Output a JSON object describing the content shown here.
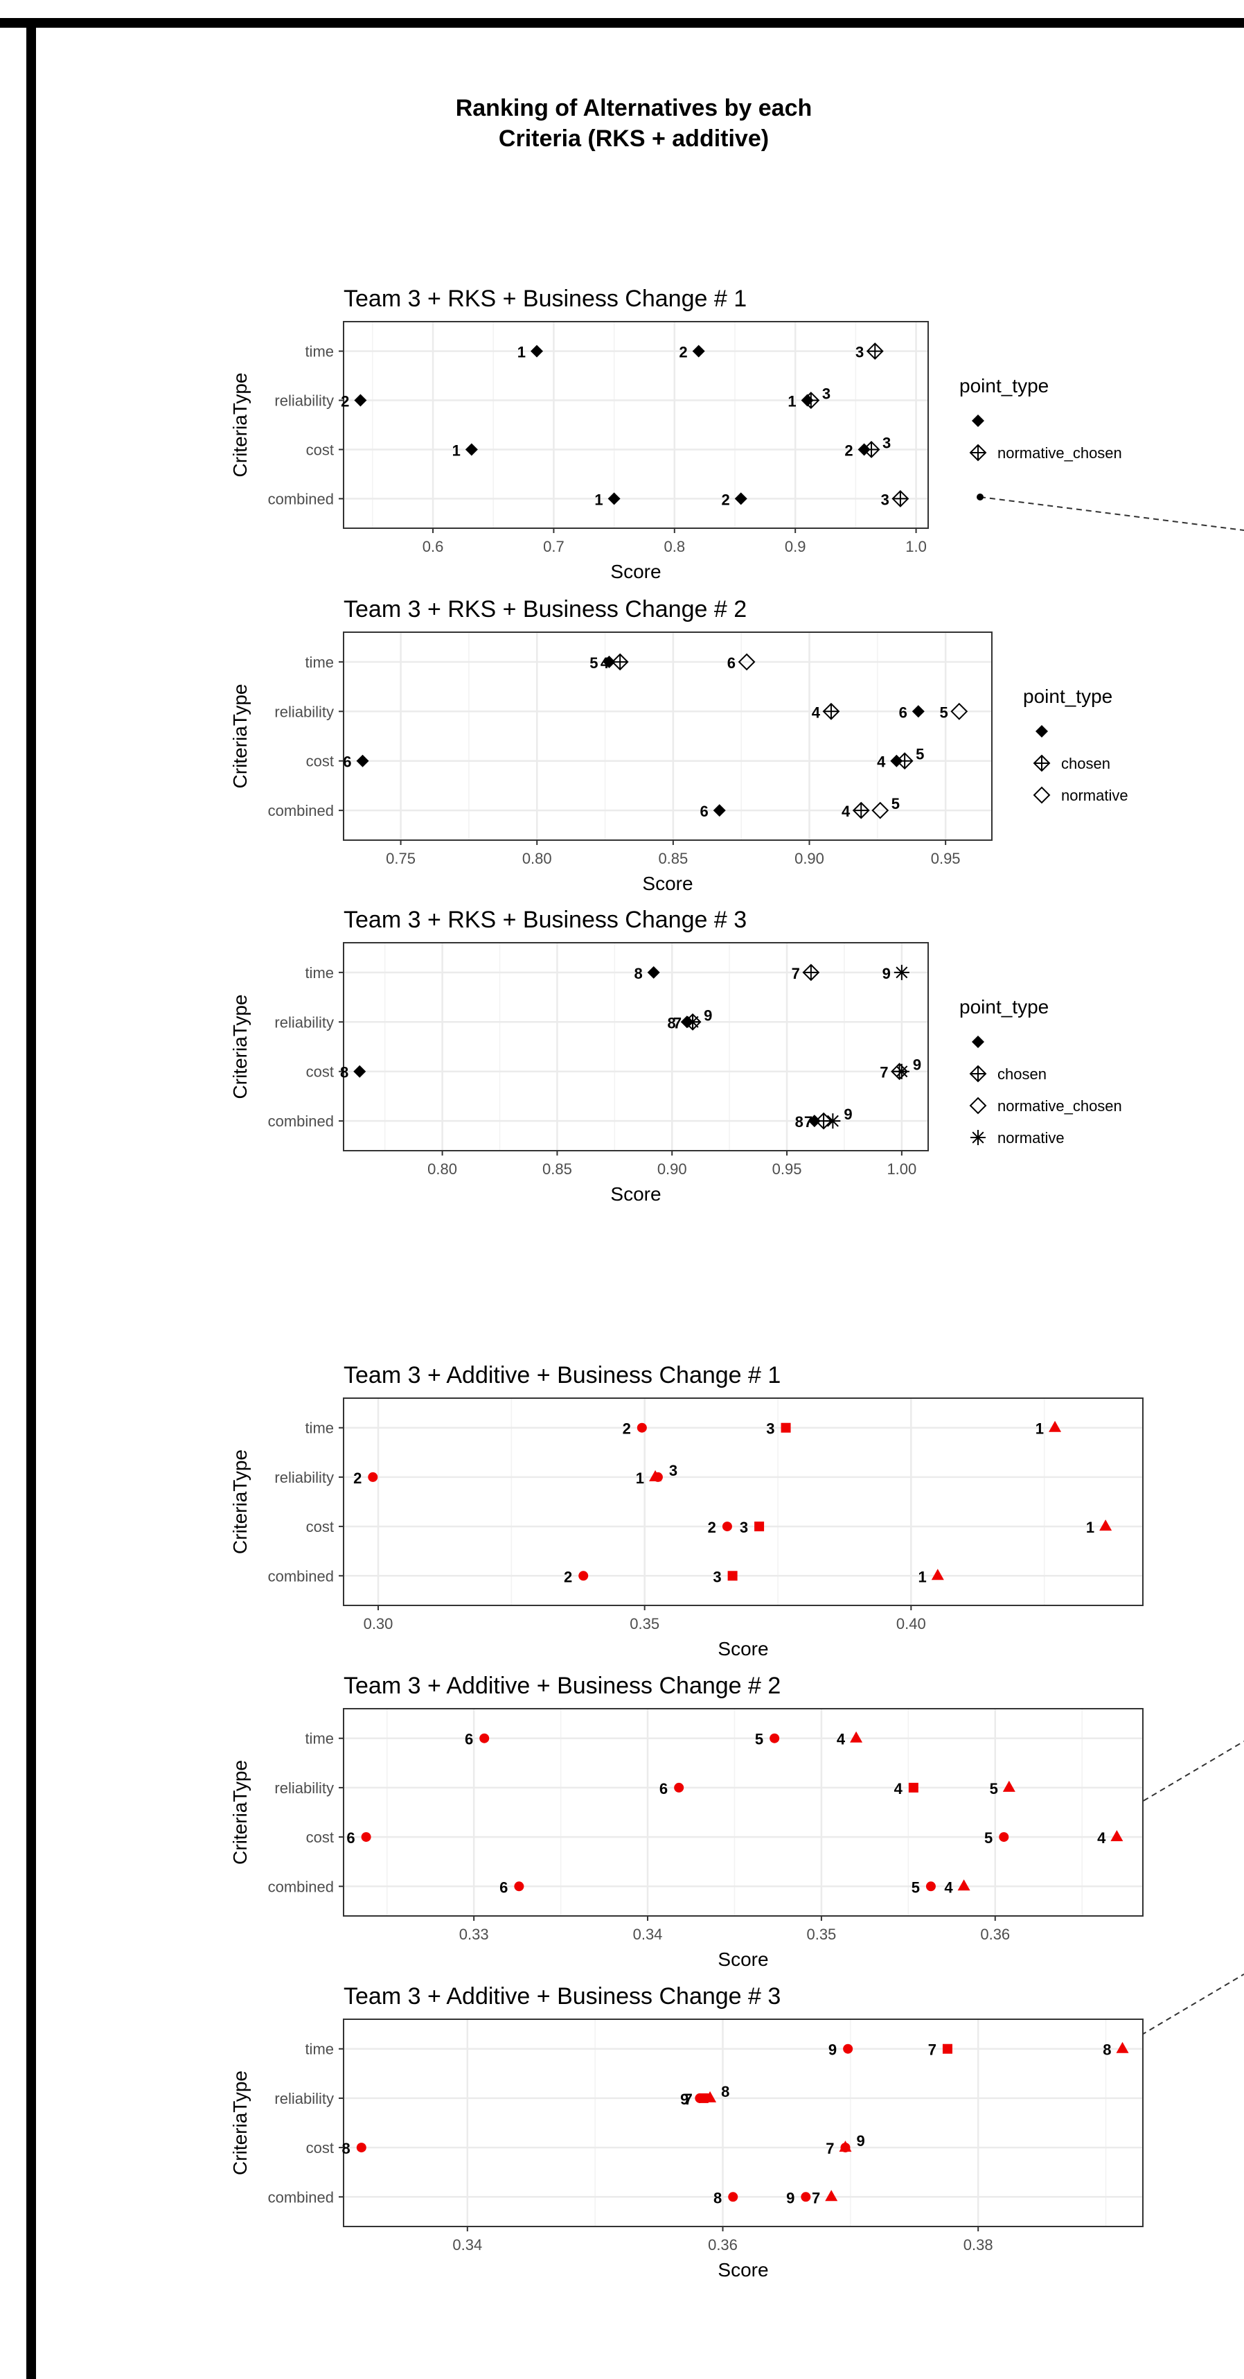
{
  "page": {
    "title_line1": "Ranking of Alternatives by each",
    "title_line2": "Criteria (RKS + additive)"
  },
  "colors": {
    "rks": "#000000",
    "additive": "#ee0000",
    "grid": "#ebebeb",
    "panel_border": "#333333",
    "dash": "#333333"
  },
  "chart_data": [
    {
      "type": "scatter",
      "title": "Team 3 + RKS + Business Change # 1",
      "xlabel": "Score",
      "ylabel": "CriteriaType",
      "categories": [
        "time",
        "reliability",
        "cost",
        "combined"
      ],
      "xlim": [
        0.526,
        1.01
      ],
      "xticks": [
        0.6,
        0.7,
        0.8,
        0.9,
        1.0
      ],
      "xtick_labels": [
        "0.6",
        "0.7",
        "0.8",
        "0.9",
        "1.0"
      ],
      "legend": {
        "title": "point_type",
        "position": "right",
        "entries": [
          {
            "label": "",
            "shape": "diamond"
          },
          {
            "label": "normative_chosen",
            "shape": "diamondplus"
          }
        ]
      },
      "points": [
        {
          "category": "time",
          "x": 0.686,
          "label": "1",
          "shape": "diamond"
        },
        {
          "category": "time",
          "x": 0.82,
          "label": "2",
          "shape": "diamond"
        },
        {
          "category": "time",
          "x": 0.966,
          "label": "3",
          "shape": "diamondplus"
        },
        {
          "category": "reliability",
          "x": 0.54,
          "label": "2",
          "shape": "diamond"
        },
        {
          "category": "reliability",
          "x": 0.91,
          "label": "1",
          "shape": "diamond"
        },
        {
          "category": "reliability",
          "x": 0.913,
          "label": "3",
          "shape": "diamondplus"
        },
        {
          "category": "cost",
          "x": 0.632,
          "label": "1",
          "shape": "diamond"
        },
        {
          "category": "cost",
          "x": 0.957,
          "label": "2",
          "shape": "diamond"
        },
        {
          "category": "cost",
          "x": 0.963,
          "label": "3",
          "shape": "diamondplus"
        },
        {
          "category": "combined",
          "x": 0.75,
          "label": "1",
          "shape": "diamond"
        },
        {
          "category": "combined",
          "x": 0.855,
          "label": "2",
          "shape": "diamond"
        },
        {
          "category": "combined",
          "x": 0.987,
          "label": "3",
          "shape": "diamondplus"
        }
      ]
    },
    {
      "type": "scatter",
      "title": "Team 3 + RKS + Business Change # 2",
      "xlabel": "Score",
      "ylabel": "CriteriaType",
      "categories": [
        "time",
        "reliability",
        "cost",
        "combined"
      ],
      "xlim": [
        0.729,
        0.967
      ],
      "xticks": [
        0.75,
        0.8,
        0.85,
        0.9,
        0.95
      ],
      "xtick_labels": [
        "0.75",
        "0.80",
        "0.85",
        "0.90",
        "0.95"
      ],
      "legend": {
        "title": "point_type",
        "position": "right",
        "entries": [
          {
            "label": "",
            "shape": "diamond"
          },
          {
            "label": "chosen",
            "shape": "diamondplus"
          },
          {
            "label": "normative",
            "shape": "diamondopen"
          }
        ]
      },
      "points": [
        {
          "category": "time",
          "x": 0.8265,
          "label": "5",
          "shape": "diamond"
        },
        {
          "category": "time",
          "x": 0.8305,
          "label": "4",
          "shape": "diamondplus"
        },
        {
          "category": "time",
          "x": 0.877,
          "label": "6",
          "shape": "diamondopen"
        },
        {
          "category": "reliability",
          "x": 0.908,
          "label": "4",
          "shape": "diamondplus"
        },
        {
          "category": "reliability",
          "x": 0.94,
          "label": "6",
          "shape": "diamond"
        },
        {
          "category": "reliability",
          "x": 0.955,
          "label": "5",
          "shape": "diamondopen"
        },
        {
          "category": "cost",
          "x": 0.736,
          "label": "6",
          "shape": "diamond"
        },
        {
          "category": "cost",
          "x": 0.932,
          "label": "4",
          "shape": "diamond"
        },
        {
          "category": "cost",
          "x": 0.935,
          "label": "5",
          "shape": "diamondplus"
        },
        {
          "category": "combined",
          "x": 0.867,
          "label": "6",
          "shape": "diamond"
        },
        {
          "category": "combined",
          "x": 0.919,
          "label": "4",
          "shape": "diamondplus"
        },
        {
          "category": "combined",
          "x": 0.926,
          "label": "5",
          "shape": "diamondopen"
        }
      ]
    },
    {
      "type": "scatter",
      "title": "Team 3 + RKS + Business Change # 3",
      "xlabel": "Score",
      "ylabel": "CriteriaType",
      "categories": [
        "time",
        "reliability",
        "cost",
        "combined"
      ],
      "xlim": [
        0.757,
        1.0115
      ],
      "xticks": [
        0.8,
        0.85,
        0.9,
        0.95,
        1.0
      ],
      "xtick_labels": [
        "0.80",
        "0.85",
        "0.90",
        "0.95",
        "1.00"
      ],
      "legend": {
        "title": "point_type",
        "position": "right",
        "entries": [
          {
            "label": "",
            "shape": "diamond"
          },
          {
            "label": "chosen",
            "shape": "diamondplus"
          },
          {
            "label": "normative_chosen",
            "shape": "diamondopen"
          },
          {
            "label": "normative",
            "shape": "asterisk"
          }
        ]
      },
      "points": [
        {
          "category": "time",
          "x": 0.892,
          "label": "8",
          "shape": "diamond"
        },
        {
          "category": "time",
          "x": 0.9605,
          "label": "7",
          "shape": "diamondplus"
        },
        {
          "category": "time",
          "x": 1.0,
          "label": "9",
          "shape": "asterisk"
        },
        {
          "category": "reliability",
          "x": 0.9065,
          "label": "8",
          "shape": "diamond"
        },
        {
          "category": "reliability",
          "x": 0.909,
          "label": "7",
          "shape": "asterisk"
        },
        {
          "category": "reliability",
          "x": 0.909,
          "label": "9",
          "shape": "diamondplus"
        },
        {
          "category": "cost",
          "x": 0.764,
          "label": "8",
          "shape": "diamond"
        },
        {
          "category": "cost",
          "x": 0.999,
          "label": "7",
          "shape": "diamondplus"
        },
        {
          "category": "cost",
          "x": 1.0,
          "label": "9",
          "shape": "asterisk"
        },
        {
          "category": "combined",
          "x": 0.962,
          "label": "8",
          "shape": "diamond"
        },
        {
          "category": "combined",
          "x": 0.966,
          "label": "7",
          "shape": "diamondplus"
        },
        {
          "category": "combined",
          "x": 0.97,
          "label": "9",
          "shape": "asterisk"
        }
      ]
    },
    {
      "type": "scatter",
      "title": "Team 3 + Additive + Business Change # 1",
      "xlabel": "Score",
      "ylabel": "CriteriaType",
      "categories": [
        "time",
        "reliability",
        "cost",
        "combined"
      ],
      "xlim": [
        0.2935,
        0.4435
      ],
      "xticks": [
        0.3,
        0.35,
        0.4
      ],
      "xtick_labels": [
        "0.30",
        "0.35",
        "0.40"
      ],
      "points": [
        {
          "category": "time",
          "x": 0.3495,
          "label": "2",
          "shape": "circle"
        },
        {
          "category": "time",
          "x": 0.3765,
          "label": "3",
          "shape": "square"
        },
        {
          "category": "time",
          "x": 0.427,
          "label": "1",
          "shape": "triangle"
        },
        {
          "category": "reliability",
          "x": 0.299,
          "label": "2",
          "shape": "circle"
        },
        {
          "category": "reliability",
          "x": 0.352,
          "label": "1",
          "shape": "triangle"
        },
        {
          "category": "reliability",
          "x": 0.3525,
          "label": "3",
          "shape": "circle"
        },
        {
          "category": "cost",
          "x": 0.3655,
          "label": "2",
          "shape": "circle"
        },
        {
          "category": "cost",
          "x": 0.3715,
          "label": "3",
          "shape": "square"
        },
        {
          "category": "cost",
          "x": 0.4365,
          "label": "1",
          "shape": "triangle"
        },
        {
          "category": "combined",
          "x": 0.3385,
          "label": "2",
          "shape": "circle"
        },
        {
          "category": "combined",
          "x": 0.3665,
          "label": "3",
          "shape": "square"
        },
        {
          "category": "combined",
          "x": 0.405,
          "label": "1",
          "shape": "triangle"
        }
      ]
    },
    {
      "type": "scatter",
      "title": "Team 3 + Additive + Business Change # 2",
      "xlabel": "Score",
      "ylabel": "CriteriaType",
      "categories": [
        "time",
        "reliability",
        "cost",
        "combined"
      ],
      "xlim": [
        0.3225,
        0.3685
      ],
      "xticks": [
        0.33,
        0.34,
        0.35,
        0.36
      ],
      "xtick_labels": [
        "0.33",
        "0.34",
        "0.35",
        "0.36"
      ],
      "points": [
        {
          "category": "time",
          "x": 0.3306,
          "label": "6",
          "shape": "circle"
        },
        {
          "category": "time",
          "x": 0.3473,
          "label": "5",
          "shape": "circle"
        },
        {
          "category": "time",
          "x": 0.352,
          "label": "4",
          "shape": "triangle"
        },
        {
          "category": "reliability",
          "x": 0.3418,
          "label": "6",
          "shape": "circle"
        },
        {
          "category": "reliability",
          "x": 0.3553,
          "label": "4",
          "shape": "square"
        },
        {
          "category": "reliability",
          "x": 0.3608,
          "label": "5",
          "shape": "triangle"
        },
        {
          "category": "cost",
          "x": 0.3238,
          "label": "6",
          "shape": "circle"
        },
        {
          "category": "cost",
          "x": 0.3605,
          "label": "5",
          "shape": "circle"
        },
        {
          "category": "cost",
          "x": 0.367,
          "label": "4",
          "shape": "triangle"
        },
        {
          "category": "combined",
          "x": 0.3326,
          "label": "6",
          "shape": "circle"
        },
        {
          "category": "combined",
          "x": 0.3563,
          "label": "5",
          "shape": "circle"
        },
        {
          "category": "combined",
          "x": 0.3582,
          "label": "4",
          "shape": "triangle"
        }
      ]
    },
    {
      "type": "scatter",
      "title": "Team 3 + Additive + Business Change # 3",
      "xlabel": "Score",
      "ylabel": "CriteriaType",
      "categories": [
        "time",
        "reliability",
        "cost",
        "combined"
      ],
      "xlim": [
        0.3303,
        0.3929
      ],
      "xticks": [
        0.34,
        0.36,
        0.38
      ],
      "xtick_labels": [
        "0.34",
        "0.36",
        "0.38"
      ],
      "points": [
        {
          "category": "time",
          "x": 0.3698,
          "label": "9",
          "shape": "circle"
        },
        {
          "category": "time",
          "x": 0.3776,
          "label": "7",
          "shape": "square"
        },
        {
          "category": "time",
          "x": 0.3913,
          "label": "8",
          "shape": "triangle"
        },
        {
          "category": "reliability",
          "x": 0.3582,
          "label": "9",
          "shape": "circle"
        },
        {
          "category": "reliability",
          "x": 0.3585,
          "label": "7",
          "shape": "square"
        },
        {
          "category": "reliability",
          "x": 0.359,
          "label": "8",
          "shape": "triangle"
        },
        {
          "category": "cost",
          "x": 0.3317,
          "label": "8",
          "shape": "circle"
        },
        {
          "category": "cost",
          "x": 0.3696,
          "label": "7",
          "shape": "triangle"
        },
        {
          "category": "cost",
          "x": 0.3696,
          "label": "9",
          "shape": "circle"
        },
        {
          "category": "combined",
          "x": 0.3608,
          "label": "8",
          "shape": "circle"
        },
        {
          "category": "combined",
          "x": 0.3665,
          "label": "9",
          "shape": "circle"
        },
        {
          "category": "combined",
          "x": 0.3685,
          "label": "7",
          "shape": "triangle"
        }
      ]
    }
  ]
}
